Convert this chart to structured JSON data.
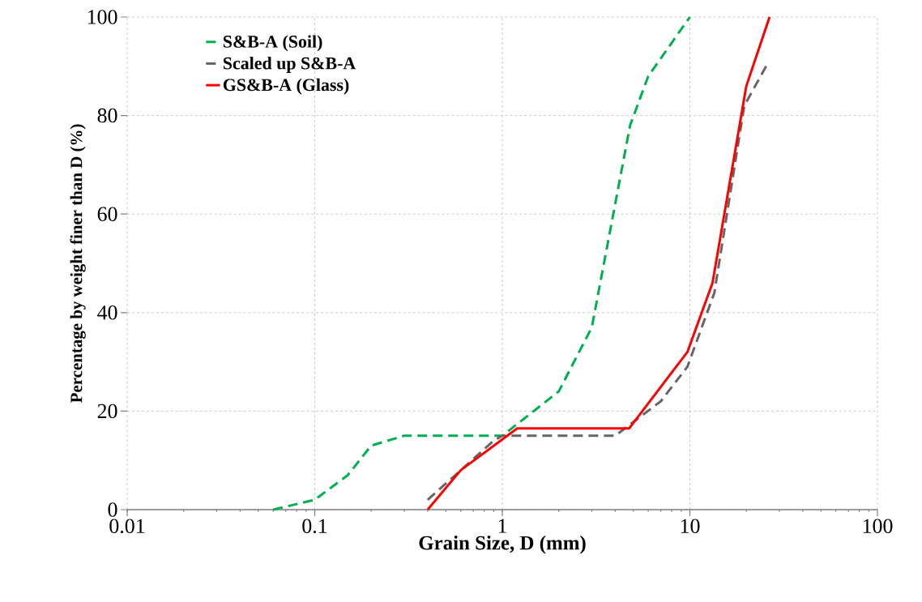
{
  "chart_data": {
    "type": "line",
    "xlabel": "Grain Size, D (mm)",
    "ylabel": "Percentage by weight finer than D (%)",
    "log": "x",
    "grid": true,
    "legend": "top left",
    "marker": "none",
    "xlim": [
      0.01,
      100
    ],
    "xticks": [
      0.01,
      0.1,
      1,
      10,
      100
    ],
    "ylim": [
      0,
      100
    ],
    "yticks": [
      0,
      20,
      40,
      60,
      80,
      100
    ],
    "series": [
      {
        "name": "S&B-A (Soil)",
        "color": "#00b050",
        "line_style": "dashed",
        "x": [
          0.06,
          0.1,
          0.15,
          0.2,
          0.3,
          1,
          2,
          3,
          4.8,
          6,
          10
        ],
        "values": [
          0,
          2,
          7,
          13,
          15,
          15,
          24,
          37,
          78,
          88,
          100
        ]
      },
      {
        "name": "Scaled up S&B-A",
        "color": "#666666",
        "line_style": "dashed",
        "x": [
          0.4,
          0.6,
          0.9,
          1,
          4,
          7,
          9.7,
          13.5,
          19.5,
          25.5
        ],
        "values": [
          2,
          8,
          14,
          15,
          15,
          22,
          29,
          44,
          82,
          90
        ]
      },
      {
        "name": "GS&B-A (Glass)",
        "color": "#ff0000",
        "line_style": "solid",
        "x": [
          0.4,
          0.6,
          1.2,
          4.75,
          9.7,
          13.2,
          20,
          26.6
        ],
        "values": [
          0,
          8,
          16.5,
          16.5,
          32,
          46,
          86,
          100
        ]
      }
    ]
  }
}
